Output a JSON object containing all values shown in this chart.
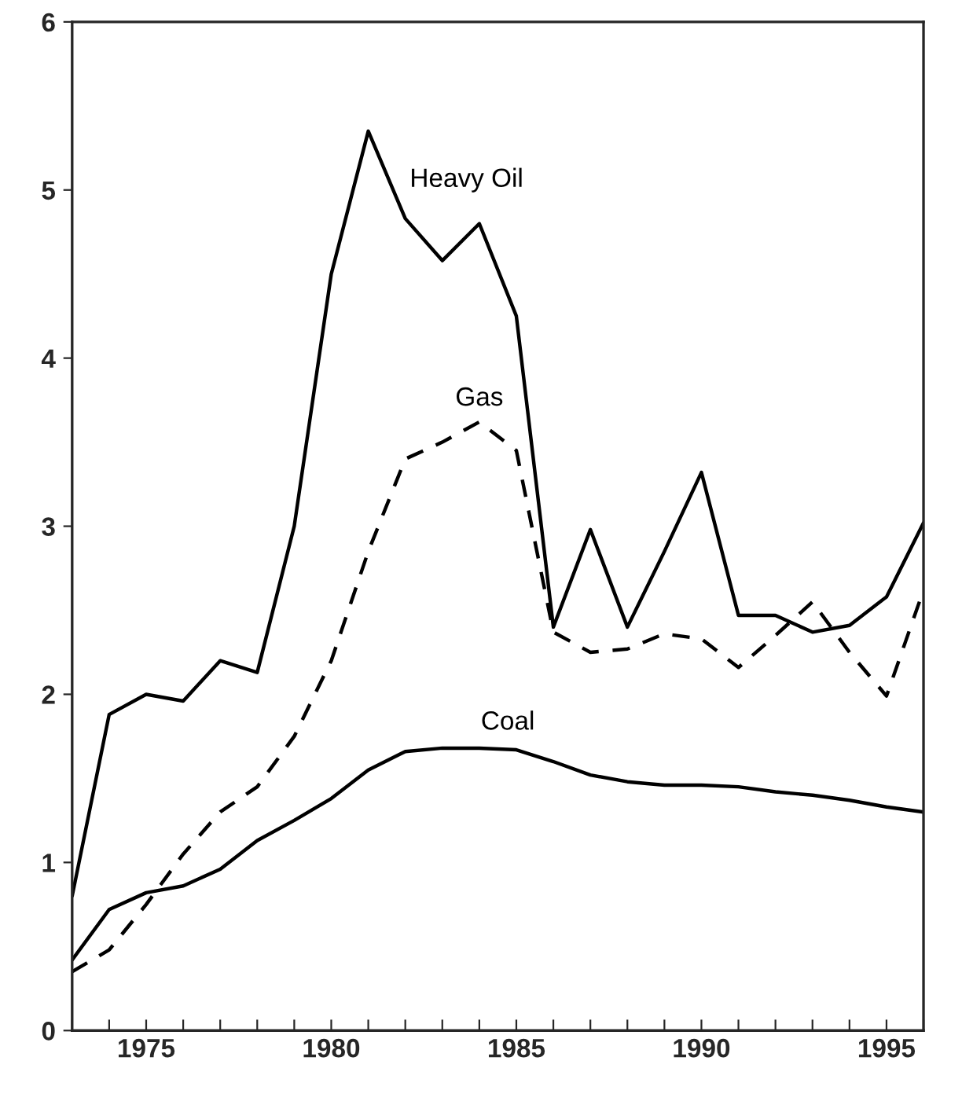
{
  "chart_data": {
    "type": "line",
    "x": [
      1973,
      1974,
      1975,
      1976,
      1977,
      1978,
      1979,
      1980,
      1981,
      1982,
      1983,
      1984,
      1985,
      1986,
      1987,
      1988,
      1989,
      1990,
      1991,
      1992,
      1993,
      1994,
      1995,
      1996
    ],
    "series": [
      {
        "name": "Heavy Oil",
        "color": "#000000",
        "line_style": "solid",
        "values": [
          0.8,
          1.88,
          2.0,
          1.96,
          2.2,
          2.13,
          3.0,
          4.5,
          5.35,
          4.83,
          4.58,
          4.8,
          4.25,
          2.4,
          2.98,
          2.4,
          2.85,
          3.32,
          2.47,
          2.47,
          2.37,
          2.41,
          2.58,
          3.02
        ]
      },
      {
        "name": "Gas",
        "color": "#000000",
        "line_style": "dashed",
        "values": [
          0.35,
          0.48,
          0.75,
          1.05,
          1.3,
          1.45,
          1.75,
          2.2,
          2.85,
          3.4,
          3.5,
          3.62,
          3.45,
          2.37,
          2.25,
          2.27,
          2.36,
          2.33,
          2.16,
          2.35,
          2.55,
          2.25,
          1.99,
          2.62
        ]
      },
      {
        "name": "Coal",
        "color": "#000000",
        "line_style": "solid",
        "values": [
          0.42,
          0.72,
          0.82,
          0.86,
          0.96,
          1.13,
          1.25,
          1.38,
          1.55,
          1.66,
          1.68,
          1.68,
          1.67,
          1.6,
          1.52,
          1.48,
          1.46,
          1.46,
          1.45,
          1.42,
          1.4,
          1.37,
          1.33,
          1.3
        ]
      }
    ],
    "xlim": [
      1973,
      1996
    ],
    "xticks": [
      {
        "value": 1973,
        "label": null
      },
      {
        "value": 1974,
        "label": null
      },
      1975,
      {
        "value": 1976,
        "label": null
      },
      {
        "value": 1977,
        "label": null
      },
      {
        "value": 1978,
        "label": null
      },
      {
        "value": 1979,
        "label": null
      },
      1980,
      {
        "value": 1981,
        "label": null
      },
      {
        "value": 1982,
        "label": null
      },
      {
        "value": 1983,
        "label": null
      },
      {
        "value": 1984,
        "label": null
      },
      1985,
      {
        "value": 1986,
        "label": null
      },
      {
        "value": 1987,
        "label": null
      },
      {
        "value": 1988,
        "label": null
      },
      {
        "value": 1989,
        "label": null
      },
      1990,
      {
        "value": 1991,
        "label": null
      },
      {
        "value": 1992,
        "label": null
      },
      {
        "value": 1993,
        "label": null
      },
      {
        "value": 1994,
        "label": null
      },
      1995,
      {
        "value": 1996,
        "label": null
      }
    ],
    "ylim": [
      0,
      6
    ],
    "yticks": [
      0,
      1,
      2,
      3,
      4,
      5,
      6
    ],
    "grid": false,
    "legend": false,
    "marker": "none"
  }
}
